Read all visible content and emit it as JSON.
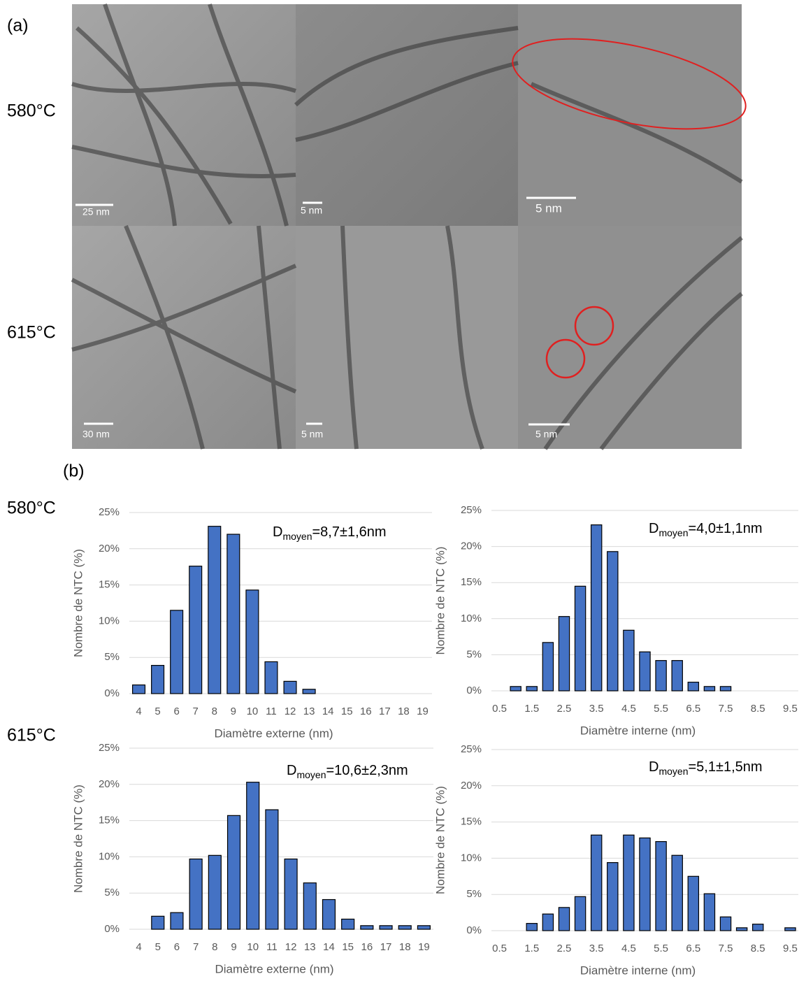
{
  "panel_a": {
    "label": "(a)",
    "rows": [
      "580°C",
      "615°C"
    ],
    "scale_bars": [
      "25 nm",
      "5 nm",
      "5 nm",
      "30 nm",
      "5 nm",
      "5 nm"
    ]
  },
  "panel_b": {
    "label": "(b)",
    "rows": [
      "580°C",
      "615°C"
    ]
  },
  "chart_data": [
    {
      "type": "bar",
      "color": "#4472c4",
      "grid": true,
      "annotation": {
        "symbol": "D",
        "subscript": "moyen",
        "text": "=8,7±1,6nm"
      },
      "x_label": "Diamètre externe (nm)",
      "y_label": "Nombre de NTC (%)",
      "categories": [
        "4",
        "5",
        "6",
        "7",
        "8",
        "9",
        "10",
        "11",
        "12",
        "13",
        "14",
        "15",
        "16",
        "17",
        "18",
        "19"
      ],
      "values": [
        1.2,
        3.9,
        11.5,
        17.6,
        23.1,
        22.0,
        14.3,
        4.4,
        1.7,
        0.6,
        0,
        0,
        0,
        0,
        0,
        0
      ],
      "ylim": [
        0,
        25
      ],
      "yticks": [
        {
          "value": 0,
          "label": "0%"
        },
        {
          "value": 5,
          "label": "5%"
        },
        {
          "value": 10,
          "label": "10%"
        },
        {
          "value": 15,
          "label": "15%"
        },
        {
          "value": 20,
          "label": "20%"
        },
        {
          "value": 25,
          "label": "25%"
        }
      ]
    },
    {
      "type": "bar",
      "color": "#4472c4",
      "grid": true,
      "annotation": {
        "symbol": "D",
        "subscript": "moyen",
        "text": "=4,0±1,1nm"
      },
      "x_label": "Diamètre interne (nm)",
      "y_label": "Nombre de NTC (%)",
      "categories": [
        "0.5",
        null,
        "1.5",
        null,
        "2.5",
        null,
        "3.5",
        null,
        "4.5",
        null,
        "5.5",
        null,
        "6.5",
        null,
        "7.5",
        null,
        "8.5",
        null,
        "9.5"
      ],
      "values": [
        0,
        0.6,
        0.6,
        6.7,
        10.3,
        14.5,
        23.0,
        19.3,
        8.4,
        5.4,
        4.2,
        4.2,
        1.2,
        0.6,
        0.6,
        0,
        0,
        0,
        0
      ],
      "ylim": [
        0,
        25
      ],
      "yticks": [
        {
          "value": 0,
          "label": "0%"
        },
        {
          "value": 5,
          "label": "5%"
        },
        {
          "value": 10,
          "label": "10%"
        },
        {
          "value": 15,
          "label": "15%"
        },
        {
          "value": 20,
          "label": "20%"
        },
        {
          "value": 25,
          "label": "25%"
        }
      ]
    },
    {
      "type": "bar",
      "color": "#4472c4",
      "grid": true,
      "annotation": {
        "symbol": "D",
        "subscript": "moyen",
        "text": "=10,6±2,3nm"
      },
      "x_label": "Diamètre externe (nm)",
      "y_label": "Nombre de NTC (%)",
      "categories": [
        "4",
        "5",
        "6",
        "7",
        "8",
        "9",
        "10",
        "11",
        "12",
        "13",
        "14",
        "15",
        "16",
        "17",
        "18",
        "19"
      ],
      "values": [
        0,
        1.8,
        2.3,
        9.7,
        10.2,
        15.7,
        20.3,
        16.5,
        9.7,
        6.4,
        4.1,
        1.4,
        0.5,
        0.5,
        0.5,
        0.5
      ],
      "ylim": [
        0,
        25
      ],
      "yticks": [
        {
          "value": 0,
          "label": "0%"
        },
        {
          "value": 5,
          "label": "5%"
        },
        {
          "value": 10,
          "label": "10%"
        },
        {
          "value": 15,
          "label": "15%"
        },
        {
          "value": 20,
          "label": "20%"
        },
        {
          "value": 25,
          "label": "25%"
        }
      ]
    },
    {
      "type": "bar",
      "color": "#4472c4",
      "grid": true,
      "annotation": {
        "symbol": "D",
        "subscript": "moyen",
        "text": "=5,1±1,5nm"
      },
      "x_label": "Diamètre interne (nm)",
      "y_label": "Nombre de NTC (%)",
      "categories": [
        "0.5",
        null,
        "1.5",
        null,
        "2.5",
        null,
        "3.5",
        null,
        "4.5",
        null,
        "5.5",
        null,
        "6.5",
        null,
        "7.5",
        null,
        "8.5",
        null,
        "9.5"
      ],
      "values": [
        0,
        0,
        1.0,
        2.3,
        3.2,
        4.7,
        13.2,
        9.4,
        13.2,
        12.8,
        12.3,
        10.4,
        7.5,
        5.1,
        1.9,
        0.4,
        0.9,
        0,
        0.4
      ],
      "ylim": [
        0,
        25
      ],
      "yticks": [
        {
          "value": 0,
          "label": "0%"
        },
        {
          "value": 5,
          "label": "5%"
        },
        {
          "value": 10,
          "label": "10%"
        },
        {
          "value": 15,
          "label": "15%"
        },
        {
          "value": 20,
          "label": "20%"
        },
        {
          "value": 25,
          "label": "25%"
        }
      ]
    }
  ]
}
